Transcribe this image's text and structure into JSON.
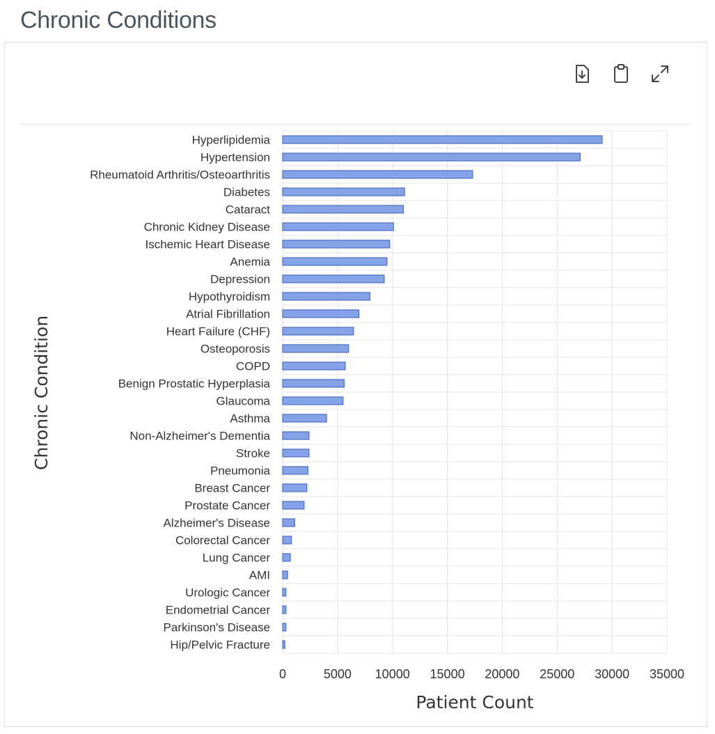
{
  "page": {
    "title": "Chronic Conditions"
  },
  "toolbar": {
    "icons": [
      "download-icon",
      "clipboard-icon",
      "expand-icon"
    ]
  },
  "colors": {
    "bar_fill": "#85a3e6",
    "bar_stroke": "#4a6cc4",
    "title": "#4a5560"
  },
  "chart_data": {
    "type": "bar",
    "orientation": "horizontal",
    "xlabel": "Patient Count",
    "ylabel": "Chronic Condition",
    "xlim": [
      0,
      35000
    ],
    "xticks": [
      0,
      5000,
      10000,
      15000,
      20000,
      25000,
      30000,
      35000
    ],
    "grid": true,
    "categories": [
      "Hyperlipidemia",
      "Hypertension",
      "Rheumatoid Arthritis/Osteoarthritis",
      "Diabetes",
      "Cataract",
      "Chronic Kidney Disease",
      "Ischemic Heart Disease",
      "Anemia",
      "Depression",
      "Hypothyroidism",
      "Atrial Fibrillation",
      "Heart Failure (CHF)",
      "Osteoporosis",
      "COPD",
      "Benign Prostatic Hyperplasia",
      "Glaucoma",
      "Asthma",
      "Non-Alzheimer's Dementia",
      "Stroke",
      "Pneumonia",
      "Breast Cancer",
      "Prostate Cancer",
      "Alzheimer's Disease",
      "Colorectal Cancer",
      "Lung Cancer",
      "AMI",
      "Urologic Cancer",
      "Endometrial Cancer",
      "Parkinson's Disease",
      "Hip/Pelvic Fracture"
    ],
    "values": [
      29100,
      27100,
      17300,
      11100,
      11000,
      10100,
      9750,
      9500,
      9250,
      7950,
      6950,
      6450,
      6000,
      5700,
      5600,
      5500,
      4000,
      2400,
      2400,
      2300,
      2200,
      1950,
      1100,
      800,
      700,
      450,
      300,
      300,
      300,
      200
    ]
  }
}
